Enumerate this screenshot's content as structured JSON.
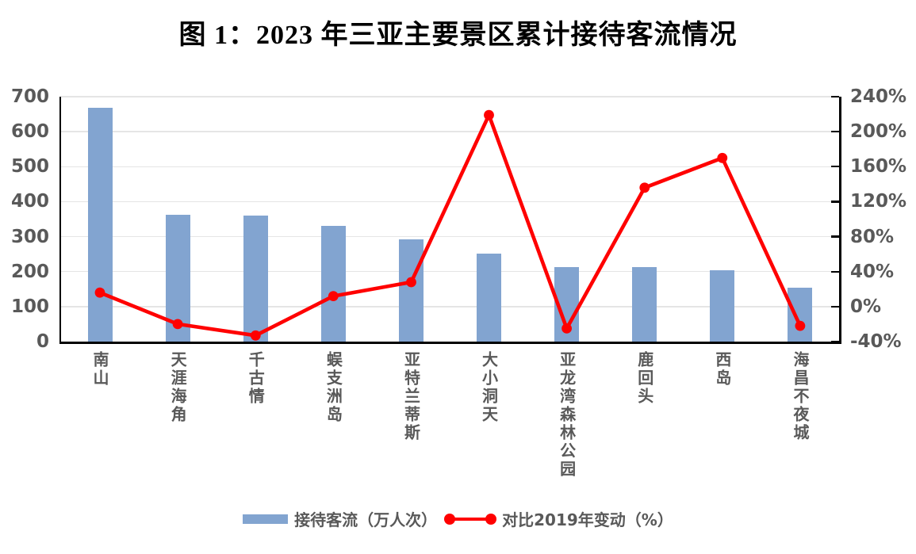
{
  "title": "图 1：2023 年三亚主要景区累计接待客流情况",
  "chart_data": {
    "type": "bar+line combo",
    "categories": [
      "南山",
      "天涯海角",
      "千古情",
      "蜈支洲岛",
      "亚特兰蒂斯",
      "大小洞天",
      "亚龙湾森林公园",
      "鹿回头",
      "西岛",
      "海昌不夜城"
    ],
    "series": [
      {
        "name": "接待客流（万人次）",
        "type": "bar",
        "axis": "left",
        "values": [
          669,
          363,
          360,
          330,
          293,
          251,
          212,
          213,
          204,
          153
        ]
      },
      {
        "name": "对比2019年变动（%）",
        "type": "line",
        "axis": "right",
        "values": [
          16,
          -20,
          -33,
          12,
          28,
          219,
          -25,
          136,
          170,
          -22
        ]
      }
    ],
    "left_axis": {
      "min": 0,
      "max": 700,
      "step": 100,
      "tick_labels": [
        "0",
        "100",
        "200",
        "300",
        "400",
        "500",
        "600",
        "700"
      ]
    },
    "right_axis": {
      "min": -40,
      "max": 240,
      "step": 40,
      "tick_labels": [
        "-40%",
        "0%",
        "40%",
        "80%",
        "120%",
        "160%",
        "200%",
        "240%"
      ]
    },
    "grid": true,
    "legend_position": "bottom"
  },
  "colors": {
    "bar": "#82A4D0",
    "line": "#FF0000",
    "grid": "#E5E5E5",
    "axis": "#000000",
    "tick_text": "#595959",
    "title_text": "#000000",
    "background": "#FFFFFF"
  }
}
